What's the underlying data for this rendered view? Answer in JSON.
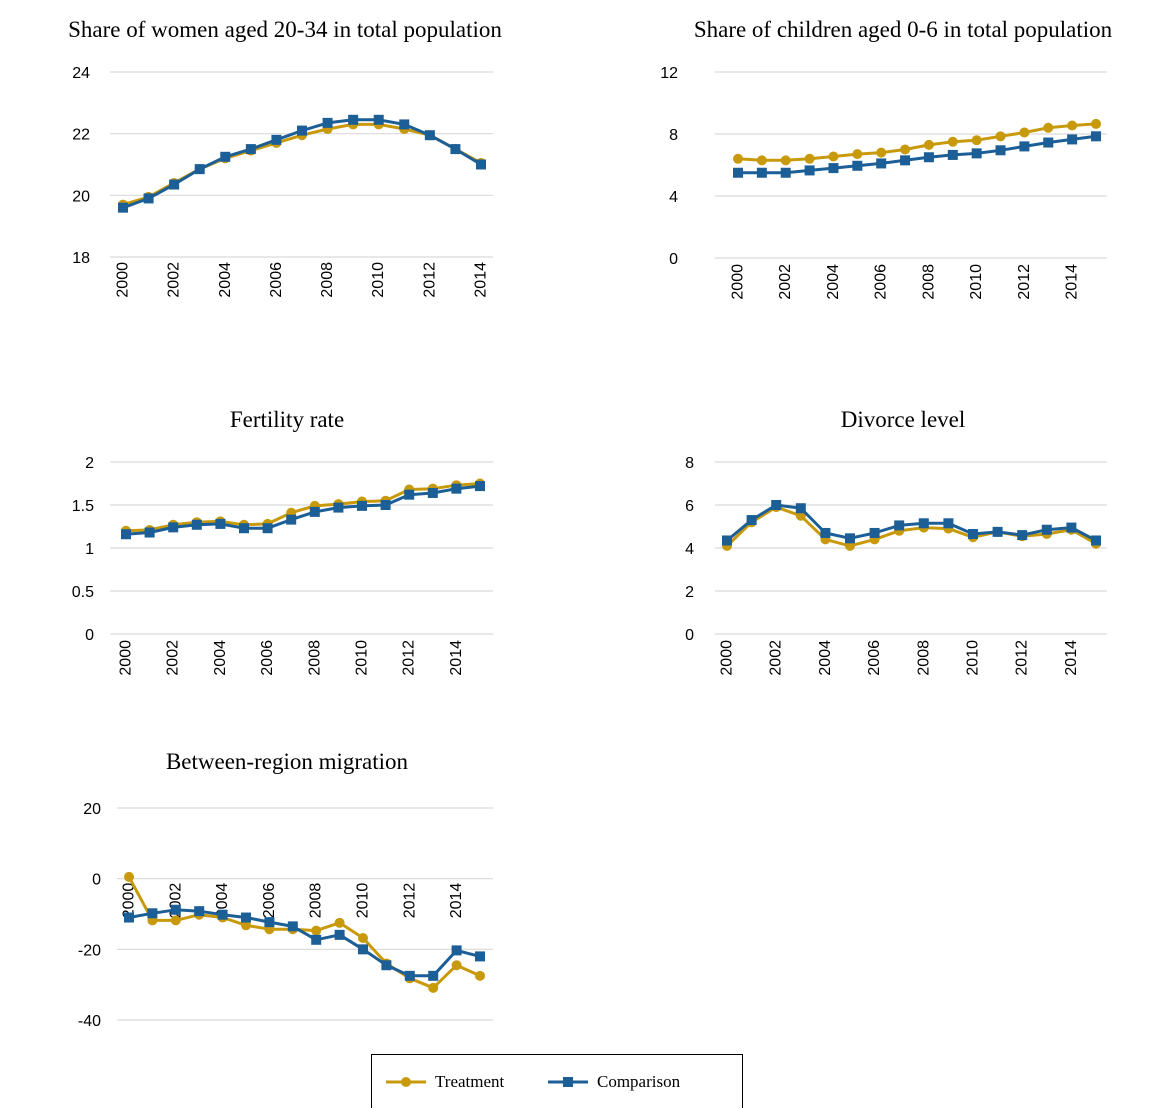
{
  "colors": {
    "treatment": "#C89A0B",
    "comparison": "#1C5E96",
    "grid": "#D9D9D9",
    "text": "#000000"
  },
  "legend": {
    "placement": "bottom-center",
    "treatment_label": "Treatment",
    "treatment_icon": "circle-line-marker-icon",
    "comparison_label": "Comparison",
    "comparison_icon": "square-line-marker-icon"
  },
  "chart_data": [
    {
      "type": "line",
      "title": "Share of women aged 20-34 in total population",
      "xlabel": "",
      "ylabel": "",
      "ylim": [
        18,
        24
      ],
      "yticks": [
        "18",
        "20",
        "22",
        "24"
      ],
      "xticks": [
        "2000",
        "2002",
        "2004",
        "2006",
        "2008",
        "2010",
        "2012",
        "2014"
      ],
      "grid": true,
      "x": [
        2000,
        2001,
        2002,
        2003,
        2004,
        2005,
        2006,
        2007,
        2008,
        2009,
        2010,
        2011,
        2012,
        2013,
        2014
      ],
      "series": [
        {
          "name": "Treatment",
          "values": [
            19.7,
            19.95,
            20.4,
            20.85,
            21.2,
            21.45,
            21.7,
            21.95,
            22.15,
            22.3,
            22.3,
            22.15,
            21.95,
            21.5,
            21.05
          ]
        },
        {
          "name": "Comparison",
          "values": [
            19.6,
            19.9,
            20.35,
            20.85,
            21.25,
            21.5,
            21.8,
            22.1,
            22.35,
            22.45,
            22.45,
            22.3,
            21.95,
            21.5,
            21.0
          ]
        }
      ]
    },
    {
      "type": "line",
      "title": "Share of children aged 0-6 in total population",
      "xlabel": "",
      "ylabel": "",
      "ylim": [
        0,
        12
      ],
      "yticks": [
        "0",
        "4",
        "8",
        "12"
      ],
      "xticks": [
        "2000",
        "2002",
        "2004",
        "2006",
        "2008",
        "2010",
        "2012",
        "2014"
      ],
      "grid": true,
      "x": [
        2000,
        2001,
        2002,
        2003,
        2004,
        2005,
        2006,
        2007,
        2008,
        2009,
        2010,
        2011,
        2012,
        2013,
        2014,
        2015
      ],
      "series": [
        {
          "name": "Treatment",
          "values": [
            6.4,
            6.3,
            6.3,
            6.4,
            6.55,
            6.7,
            6.8,
            7.0,
            7.3,
            7.5,
            7.6,
            7.85,
            8.1,
            8.4,
            8.55,
            8.65
          ]
        },
        {
          "name": "Comparison",
          "values": [
            5.5,
            5.5,
            5.5,
            5.65,
            5.8,
            5.95,
            6.1,
            6.3,
            6.5,
            6.65,
            6.75,
            6.95,
            7.2,
            7.45,
            7.65,
            7.85
          ]
        }
      ]
    },
    {
      "type": "line",
      "title": "Fertility rate",
      "xlabel": "",
      "ylabel": "",
      "ylim": [
        0,
        2
      ],
      "yticks": [
        "0",
        "0.5",
        "1",
        "1.5",
        "2"
      ],
      "xticks": [
        "2000",
        "2002",
        "2004",
        "2006",
        "2008",
        "2010",
        "2012",
        "2014"
      ],
      "grid": true,
      "x": [
        2000,
        2001,
        2002,
        2003,
        2004,
        2005,
        2006,
        2007,
        2008,
        2009,
        2010,
        2011,
        2012,
        2013,
        2014,
        2015
      ],
      "series": [
        {
          "name": "Treatment",
          "values": [
            1.2,
            1.21,
            1.27,
            1.3,
            1.31,
            1.27,
            1.28,
            1.41,
            1.49,
            1.51,
            1.54,
            1.55,
            1.68,
            1.69,
            1.73,
            1.75
          ]
        },
        {
          "name": "Comparison",
          "values": [
            1.16,
            1.18,
            1.24,
            1.27,
            1.28,
            1.23,
            1.23,
            1.33,
            1.42,
            1.47,
            1.49,
            1.5,
            1.62,
            1.64,
            1.69,
            1.72
          ]
        }
      ]
    },
    {
      "type": "line",
      "title": "Divorce level",
      "xlabel": "",
      "ylabel": "",
      "ylim": [
        0,
        8
      ],
      "yticks": [
        "0",
        "2",
        "4",
        "6",
        "8"
      ],
      "xticks": [
        "2000",
        "2002",
        "2004",
        "2006",
        "2008",
        "2010",
        "2012",
        "2014"
      ],
      "grid": true,
      "x": [
        2000,
        2001,
        2002,
        2003,
        2004,
        2005,
        2006,
        2007,
        2008,
        2009,
        2010,
        2011,
        2012,
        2013,
        2014,
        2015
      ],
      "series": [
        {
          "name": "Treatment",
          "values": [
            4.1,
            5.2,
            5.9,
            5.5,
            4.4,
            4.1,
            4.4,
            4.8,
            4.95,
            4.9,
            4.5,
            4.75,
            4.55,
            4.65,
            4.85,
            4.2
          ]
        },
        {
          "name": "Comparison",
          "values": [
            4.35,
            5.3,
            6.0,
            5.85,
            4.7,
            4.45,
            4.7,
            5.05,
            5.15,
            5.15,
            4.65,
            4.75,
            4.6,
            4.85,
            4.95,
            4.35
          ]
        }
      ]
    },
    {
      "type": "line",
      "title": "Between-region migration",
      "xlabel": "",
      "ylabel": "",
      "ylim": [
        -40,
        20
      ],
      "yticks": [
        "-40",
        "-20",
        "0",
        "20"
      ],
      "xticks": [
        "2000",
        "2002",
        "2004",
        "2006",
        "2008",
        "2010",
        "2012",
        "2014"
      ],
      "xtick_position": "at-zero",
      "grid": true,
      "x": [
        2000,
        2001,
        2002,
        2003,
        2004,
        2005,
        2006,
        2007,
        2008,
        2009,
        2010,
        2011,
        2012,
        2013,
        2014,
        2015
      ],
      "series": [
        {
          "name": "Treatment",
          "values": [
            0.5,
            -11.8,
            -11.8,
            -10.2,
            -11.0,
            -13.2,
            -14.3,
            -14.3,
            -14.7,
            -12.5,
            -16.8,
            -24.0,
            -28.2,
            -30.9,
            -24.5,
            -27.5
          ]
        },
        {
          "name": "Comparison",
          "values": [
            -11.0,
            -9.8,
            -8.8,
            -9.2,
            -10.2,
            -11.0,
            -12.3,
            -13.5,
            -17.3,
            -15.9,
            -20.0,
            -24.5,
            -27.5,
            -27.5,
            -20.3,
            -22.0
          ]
        }
      ]
    }
  ]
}
